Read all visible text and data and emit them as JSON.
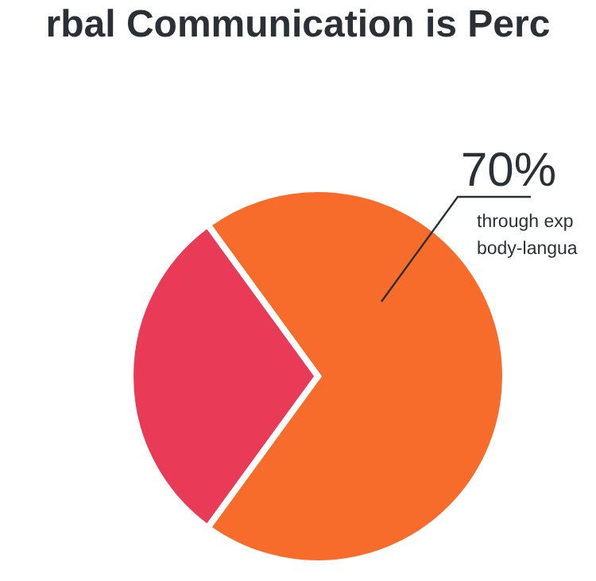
{
  "chart_data": {
    "type": "pie",
    "title": "rbal Communication is Perc",
    "categories": [
      null,
      null
    ],
    "values": [
      70,
      30
    ],
    "colors": [
      "#f76b2b",
      "#e93a57"
    ],
    "value_labels": [
      "70%",
      null
    ],
    "annotations": [
      "through exp body-langua"
    ],
    "legend": false
  }
}
